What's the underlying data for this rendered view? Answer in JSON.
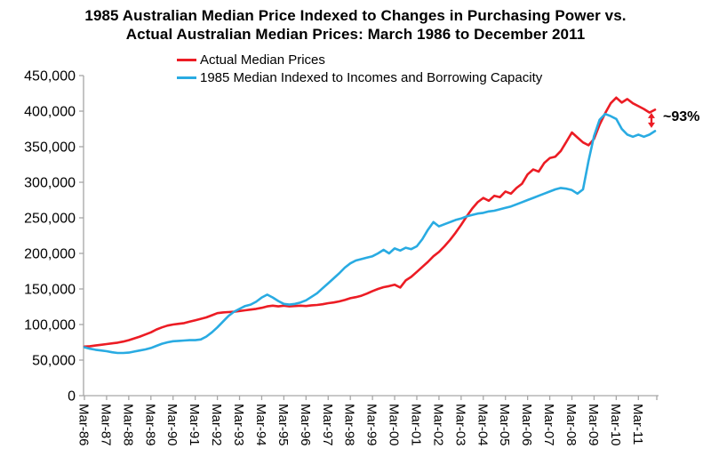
{
  "title_line1": "1985 Australian Median Price Indexed to Changes in Purchasing Power vs.",
  "title_line2": "Actual Australian Median Prices: March 1986 to December 2011",
  "legend": [
    {
      "label": "Actual Median Prices",
      "color": "#EC1C24"
    },
    {
      "label": "1985 Median Indexed to Incomes and Borrowing Capacity",
      "color": "#29ABE2"
    }
  ],
  "annotation": {
    "label": "~93%",
    "arrow_color": "#EC1C24"
  },
  "colors": {
    "axis": "#A6A6A6",
    "text": "#000000",
    "background": "#FFFFFF"
  },
  "chart_data": {
    "type": "line",
    "x_start": "Mar-1986",
    "x_end": "Dec-2011",
    "frequency": "quarterly",
    "x_tick_labels": [
      "Mar-86",
      "Mar-87",
      "Mar-88",
      "Mar-89",
      "Mar-90",
      "Mar-91",
      "Mar-92",
      "Mar-93",
      "Mar-94",
      "Mar-95",
      "Mar-96",
      "Mar-97",
      "Mar-98",
      "Mar-99",
      "Mar-00",
      "Mar-01",
      "Mar-02",
      "Mar-03",
      "Mar-04",
      "Mar-05",
      "Mar-06",
      "Mar-07",
      "Mar-08",
      "Mar-09",
      "Mar-10",
      "Mar-11"
    ],
    "y_ticks": [
      0,
      50000,
      100000,
      150000,
      200000,
      250000,
      300000,
      350000,
      400000,
      450000
    ],
    "ylim": [
      0,
      450000
    ],
    "grid": false,
    "legend_position": "top-left-inside",
    "series": [
      {
        "name": "Actual Median Prices",
        "color": "#EC1C24",
        "values": [
          69000,
          69500,
          70500,
          71500,
          72500,
          73500,
          74500,
          76000,
          78000,
          80500,
          83000,
          86000,
          89000,
          93000,
          96000,
          98500,
          100000,
          101000,
          102000,
          104000,
          106000,
          108000,
          110000,
          113000,
          116000,
          117000,
          117500,
          118000,
          119000,
          120000,
          121000,
          122000,
          123500,
          125500,
          126500,
          125500,
          126500,
          125500,
          126000,
          126500,
          126000,
          127000,
          127500,
          128500,
          130000,
          131000,
          132500,
          134500,
          137000,
          138500,
          140500,
          143500,
          147000,
          150000,
          152500,
          154000,
          156000,
          152000,
          162000,
          167000,
          174000,
          181000,
          188000,
          196000,
          202000,
          210000,
          219000,
          229000,
          240000,
          252000,
          263000,
          272000,
          278000,
          274000,
          281000,
          279000,
          287000,
          284000,
          292000,
          298000,
          311000,
          318000,
          315000,
          327000,
          334000,
          336000,
          344000,
          357000,
          370000,
          363000,
          356000,
          352000,
          361000,
          381000,
          397000,
          411000,
          419000,
          412000,
          417000,
          411000,
          407000,
          403000,
          398000,
          402000
        ]
      },
      {
        "name": "1985 Median Indexed to Incomes and Borrowing Capacity",
        "color": "#29ABE2",
        "values": [
          68000,
          66000,
          64500,
          63500,
          62500,
          61000,
          60000,
          60000,
          60500,
          62000,
          63500,
          65000,
          67000,
          70000,
          73000,
          75000,
          76500,
          77000,
          77500,
          78000,
          78000,
          79000,
          83000,
          89000,
          96000,
          104000,
          112000,
          118000,
          122000,
          126000,
          128000,
          132000,
          138000,
          142000,
          138000,
          133000,
          129000,
          128000,
          129000,
          131000,
          134000,
          139000,
          144000,
          151000,
          158000,
          165000,
          172000,
          180000,
          186000,
          190000,
          192000,
          194000,
          196000,
          200000,
          205000,
          200000,
          207000,
          204000,
          208000,
          206000,
          210000,
          220000,
          233000,
          244000,
          238000,
          241000,
          244000,
          247000,
          249000,
          252000,
          254000,
          256000,
          257000,
          259000,
          260000,
          262000,
          264000,
          266000,
          269000,
          272000,
          275000,
          278000,
          281000,
          284000,
          287000,
          290000,
          292000,
          291000,
          289000,
          284000,
          290000,
          330000,
          365000,
          388000,
          396000,
          393000,
          389000,
          375000,
          367000,
          364000,
          367000,
          364000,
          367000,
          372000
        ]
      }
    ],
    "annotation": {
      "label": "~93%"
    }
  }
}
